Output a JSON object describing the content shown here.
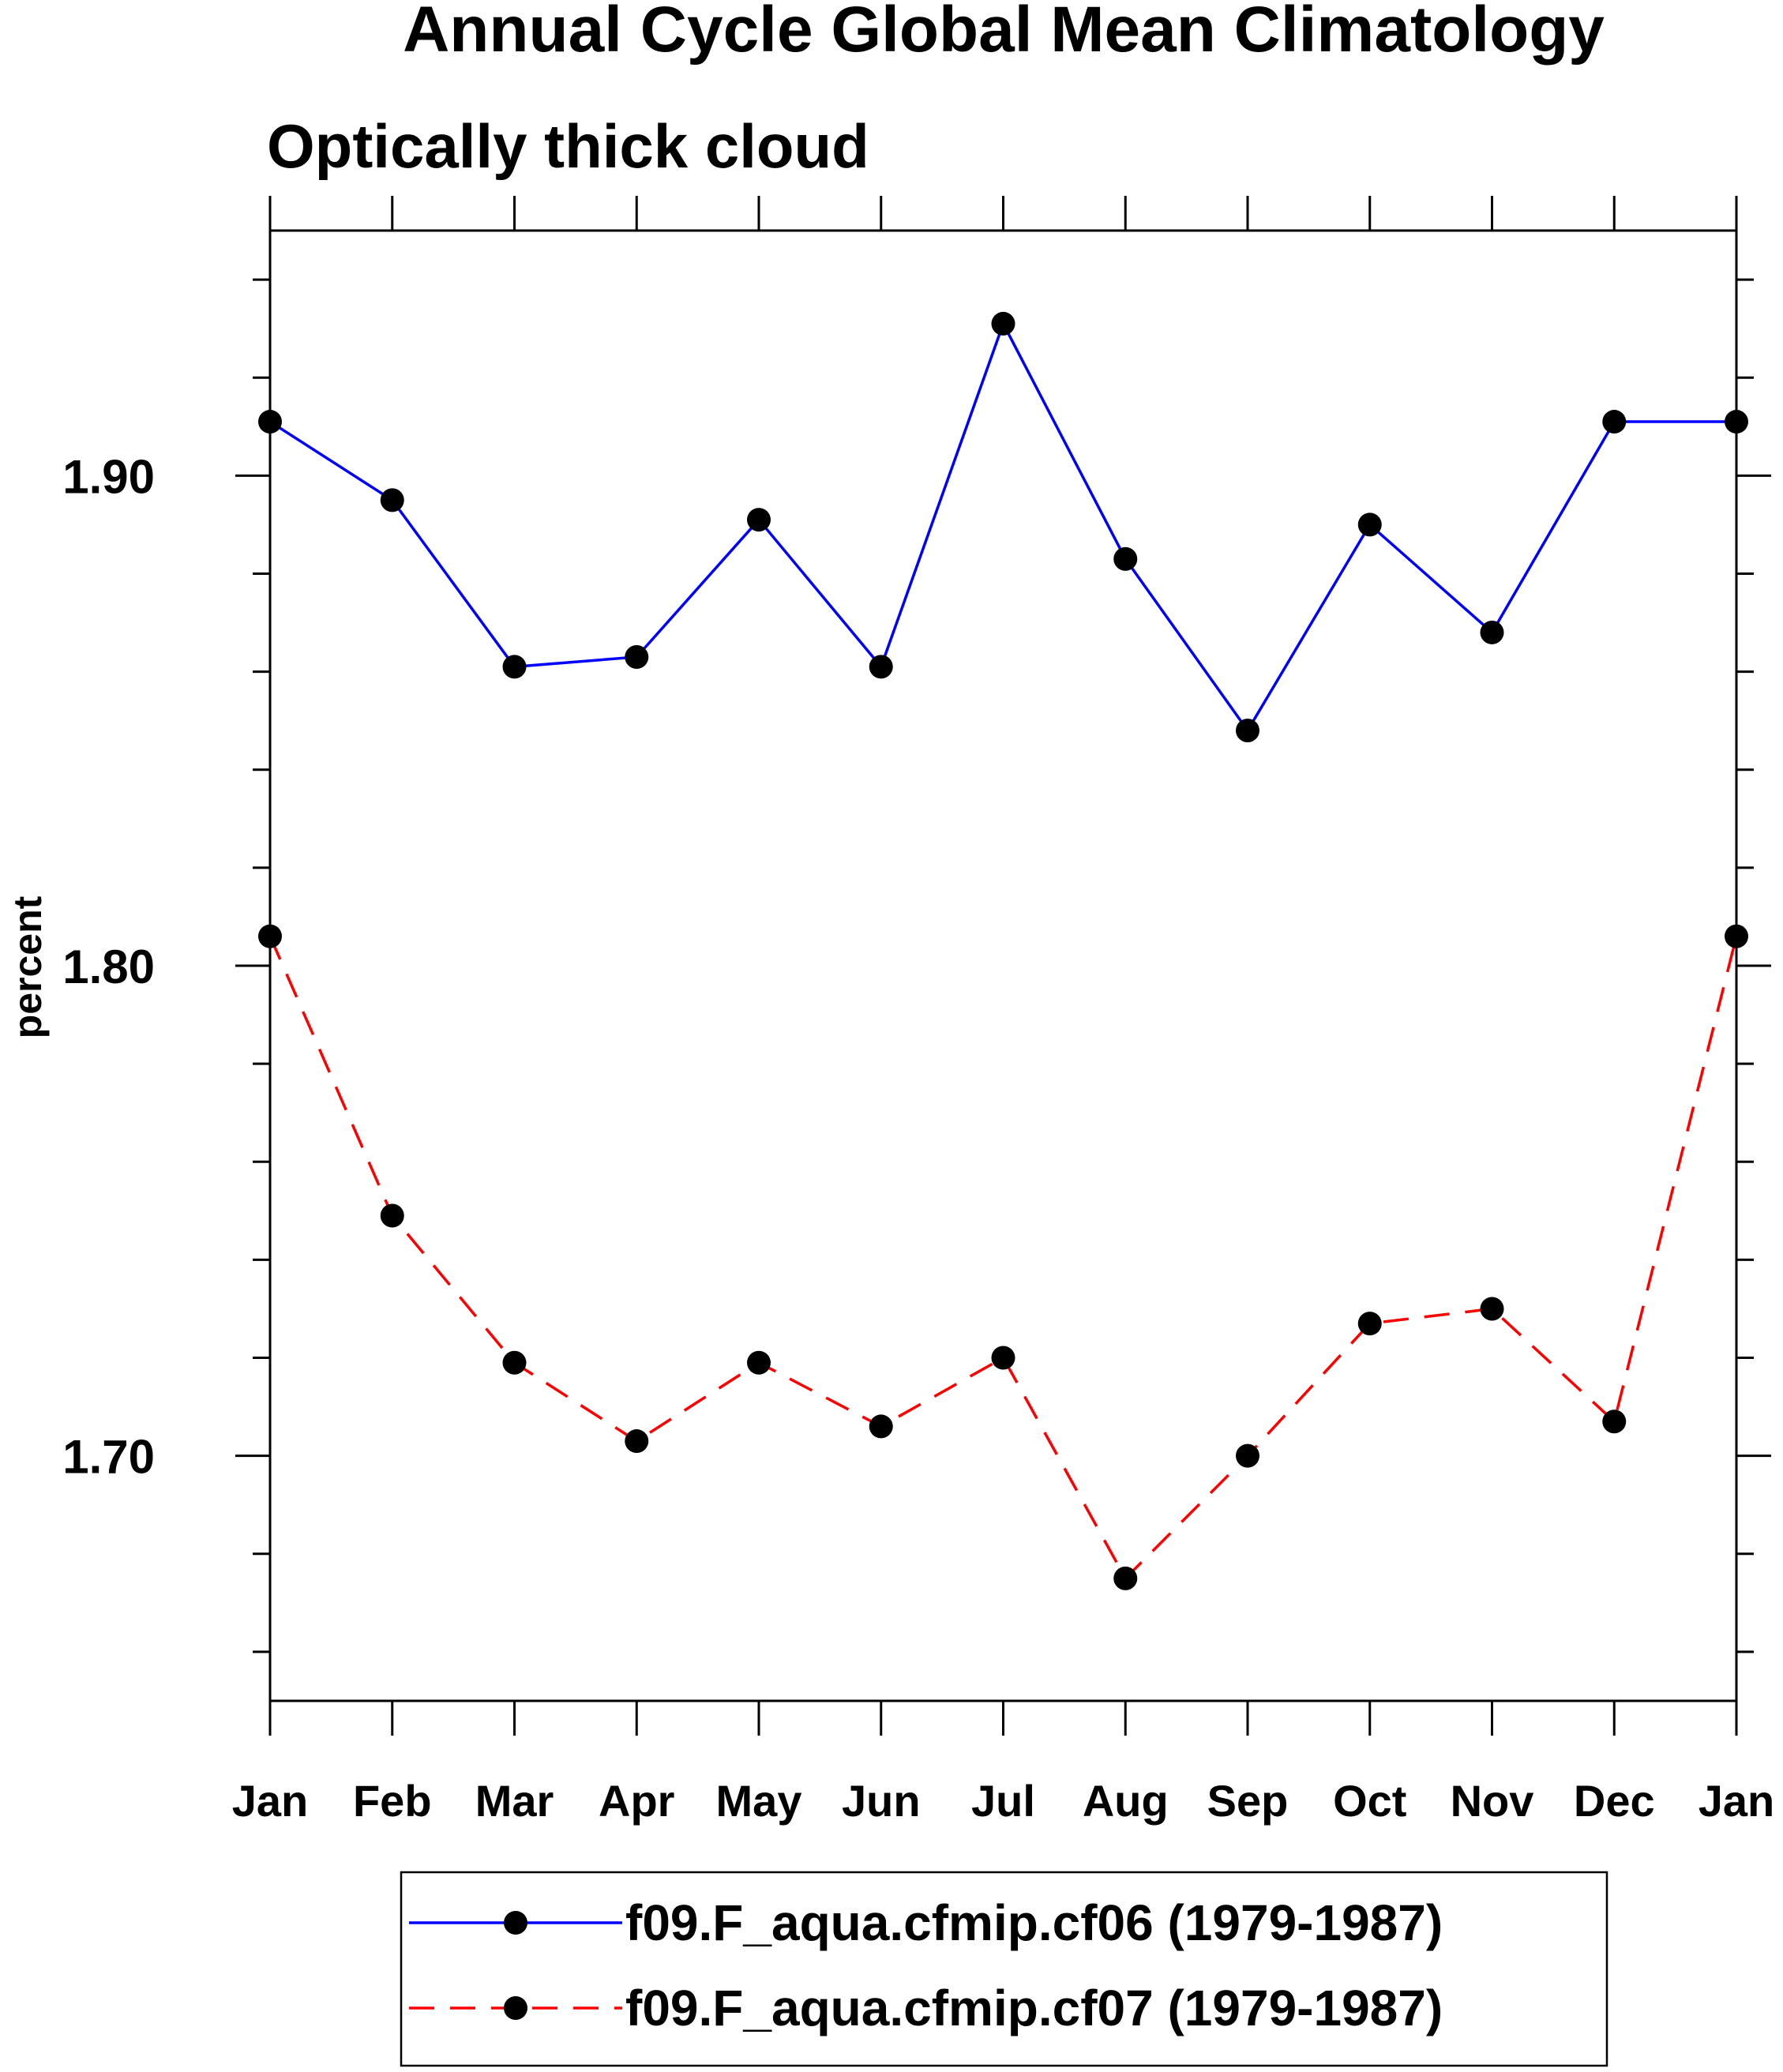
{
  "chart_data": {
    "type": "line",
    "title": "Annual Cycle Global Mean Climatology",
    "subtitle": "Optically thick cloud",
    "xlabel": "",
    "ylabel": "percent",
    "categories": [
      "Jan",
      "Feb",
      "Mar",
      "Apr",
      "May",
      "Jun",
      "Jul",
      "Aug",
      "Sep",
      "Oct",
      "Nov",
      "Dec",
      "Jan"
    ],
    "ylim": [
      1.65,
      1.95
    ],
    "yticks_major": [
      1.7,
      1.8,
      1.9
    ],
    "ytick_labels": [
      "1.70",
      "1.80",
      "1.90"
    ],
    "yticks_minor": [
      1.66,
      1.68,
      1.72,
      1.74,
      1.76,
      1.78,
      1.82,
      1.84,
      1.86,
      1.88,
      1.92,
      1.94
    ],
    "grid": false,
    "legend_position": "bottom-center",
    "series": [
      {
        "name": "f09.F_aqua.cfmip.cf06 (1979-1987)",
        "color": "#0000ff",
        "line_style": "solid",
        "marker": "filled-circle",
        "values": [
          1.911,
          1.895,
          1.861,
          1.863,
          1.891,
          1.861,
          1.931,
          1.883,
          1.848,
          1.89,
          1.868,
          1.911,
          1.911
        ]
      },
      {
        "name": "f09.F_aqua.cfmip.cf07 (1979-1987)",
        "color": "#ff0000",
        "line_style": "dashed",
        "marker": "filled-circle",
        "values": [
          1.806,
          1.749,
          1.719,
          1.703,
          1.719,
          1.706,
          1.72,
          1.675,
          1.7,
          1.727,
          1.73,
          1.707,
          1.806
        ]
      }
    ]
  }
}
